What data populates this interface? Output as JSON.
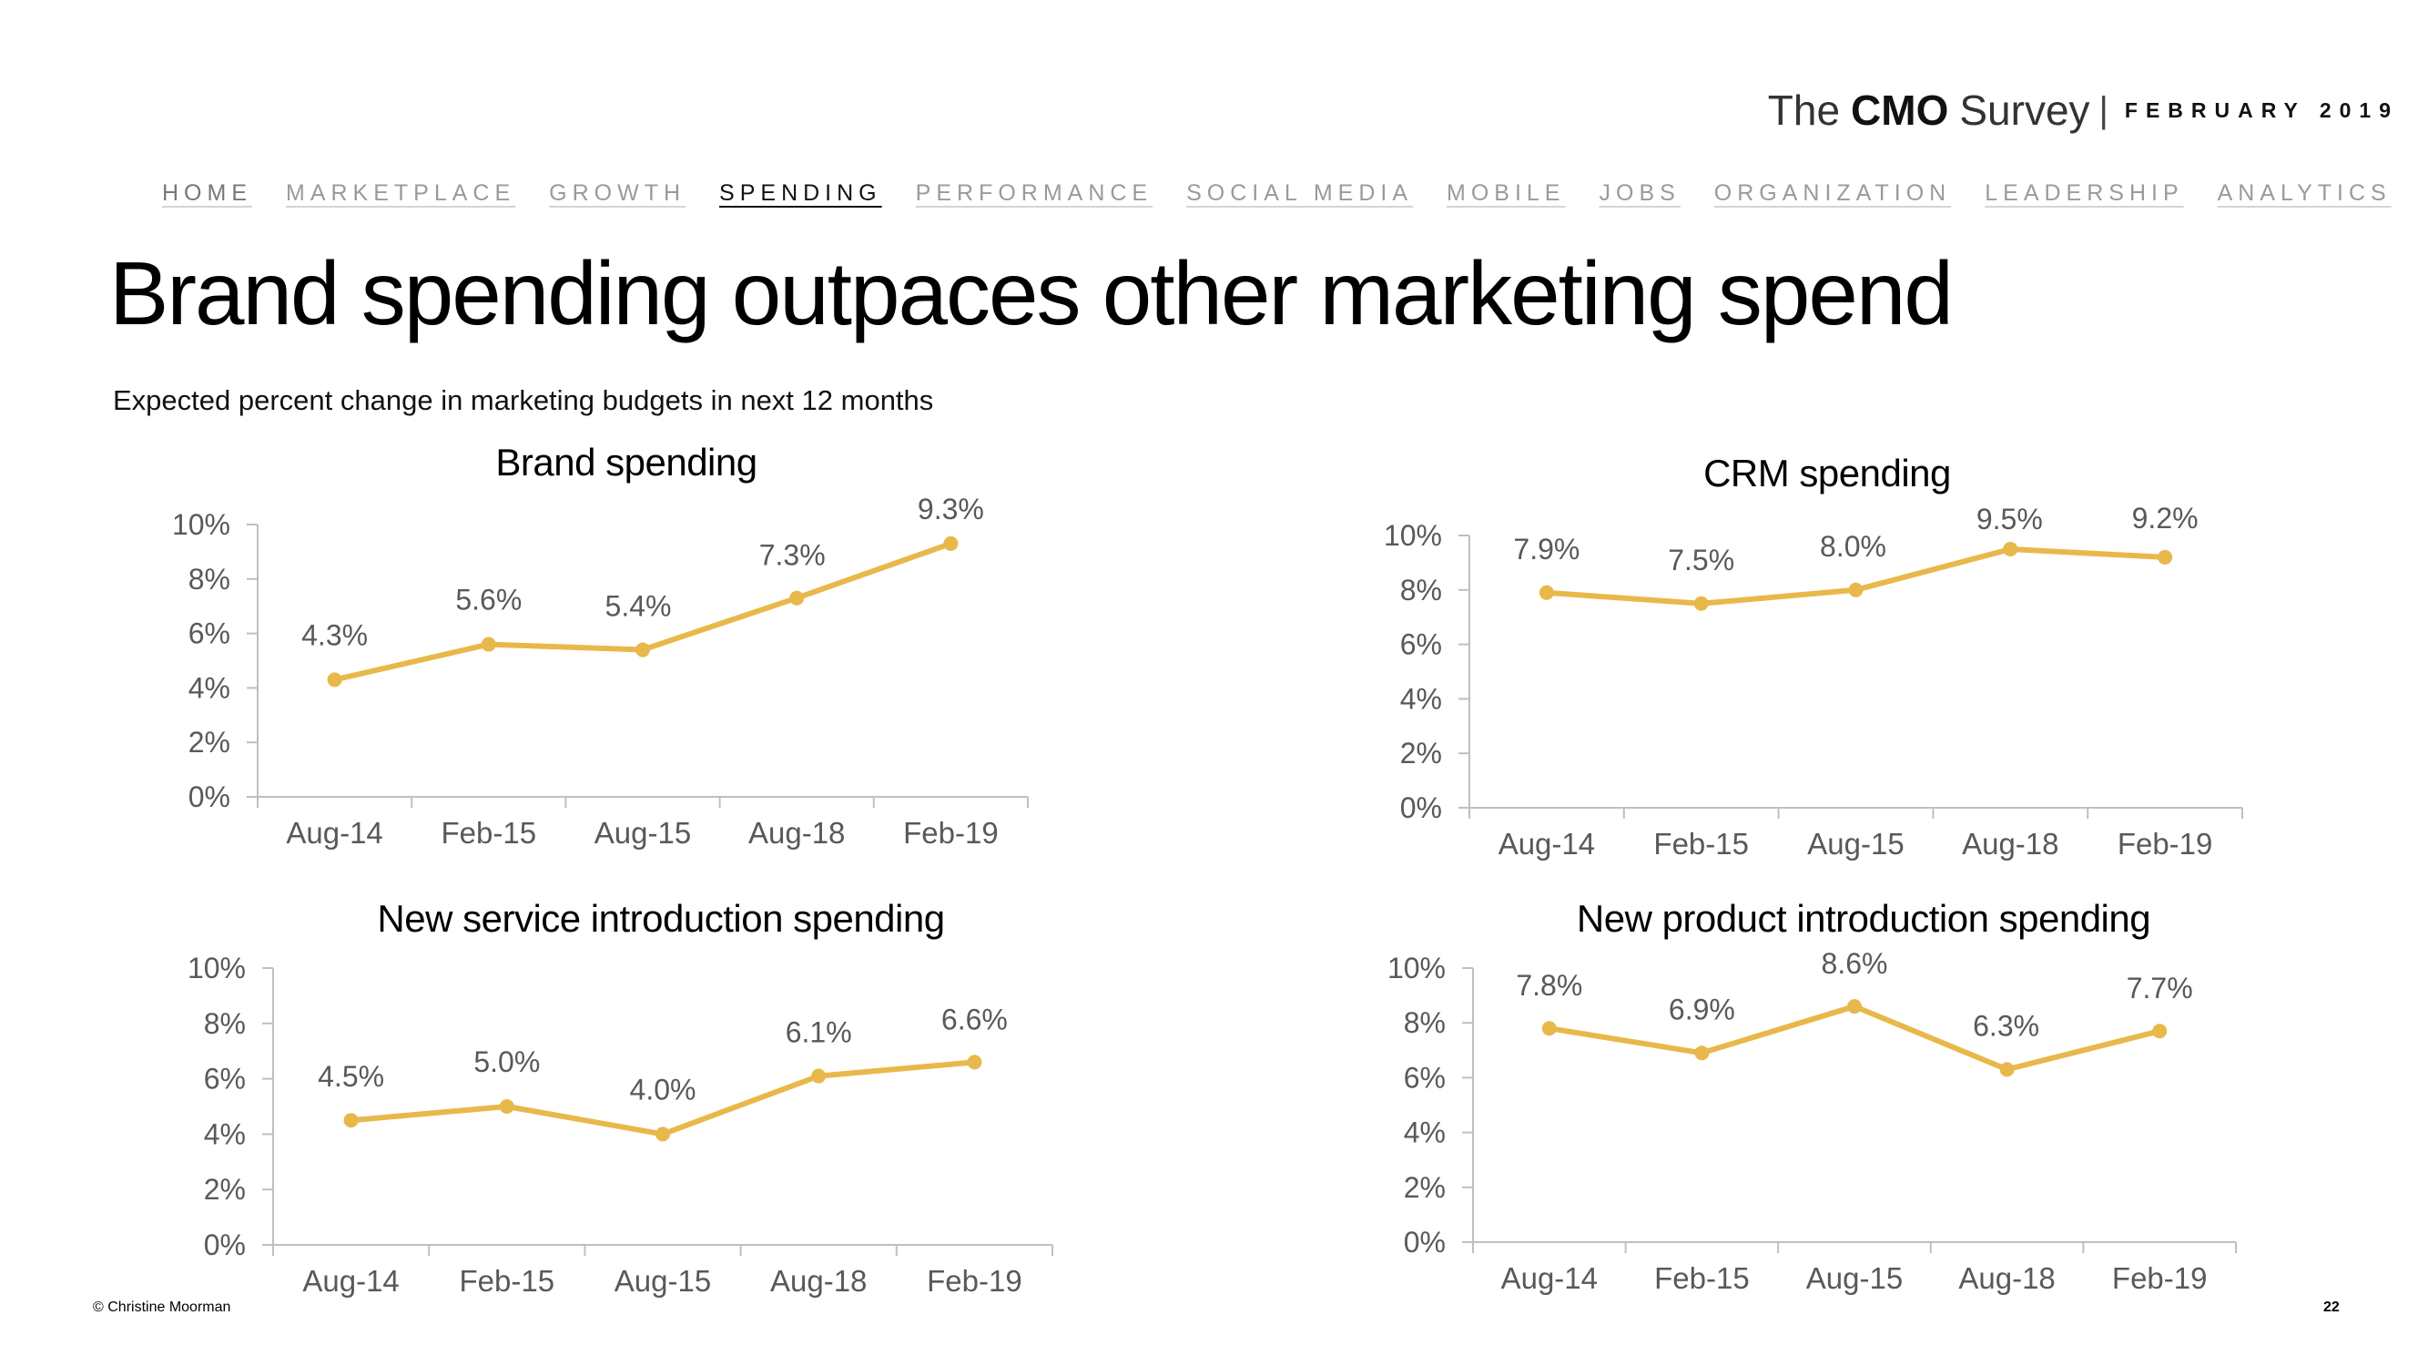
{
  "logo": {
    "the": "The",
    "cmo": "CMO",
    "survey": "Survey",
    "separator": "|",
    "date": "FEBRUARY 2019"
  },
  "nav": {
    "items": [
      "HOME",
      "MARKETPLACE",
      "GROWTH",
      "SPENDING",
      "PERFORMANCE",
      "SOCIAL MEDIA",
      "MOBILE",
      "JOBS",
      "ORGANIZATION",
      "LEADERSHIP",
      "ANALYTICS"
    ],
    "active": "SPENDING"
  },
  "title": "Brand spending outpaces other marketing spend",
  "subtitle": "Expected percent change in marketing budgets in next 12 months",
  "footer": {
    "copyright": "© Christine Moorman",
    "page_number": "22"
  },
  "colors": {
    "line": "#E8B84A",
    "axis": "#BFBFBF",
    "tick_text": "#595959",
    "title_text": "#000000"
  },
  "chart_data": [
    {
      "type": "line",
      "title": "Brand spending",
      "categories": [
        "Aug-14",
        "Feb-15",
        "Aug-15",
        "Aug-18",
        "Feb-19"
      ],
      "values": [
        4.3,
        5.6,
        5.4,
        7.3,
        9.3
      ],
      "data_labels": [
        "4.3%",
        "5.6%",
        "5.4%",
        "7.3%",
        "9.3%"
      ],
      "yticks": [
        "0%",
        "2%",
        "4%",
        "6%",
        "8%",
        "10%"
      ],
      "ylim": [
        0,
        10
      ],
      "xlabel": "",
      "ylabel": ""
    },
    {
      "type": "line",
      "title": "CRM spending",
      "categories": [
        "Aug-14",
        "Feb-15",
        "Aug-15",
        "Aug-18",
        "Feb-19"
      ],
      "values": [
        7.9,
        7.5,
        8.0,
        9.5,
        9.2
      ],
      "data_labels": [
        "7.9%",
        "7.5%",
        "8.0%",
        "9.5%",
        "9.2%"
      ],
      "yticks": [
        "0%",
        "2%",
        "4%",
        "6%",
        "8%",
        "10%"
      ],
      "ylim": [
        0,
        10
      ],
      "xlabel": "",
      "ylabel": ""
    },
    {
      "type": "line",
      "title": "New service introduction spending",
      "categories": [
        "Aug-14",
        "Feb-15",
        "Aug-15",
        "Aug-18",
        "Feb-19"
      ],
      "values": [
        4.5,
        5.0,
        4.0,
        6.1,
        6.6
      ],
      "data_labels": [
        "4.5%",
        "5.0%",
        "4.0%",
        "6.1%",
        "6.6%"
      ],
      "yticks": [
        "0%",
        "2%",
        "4%",
        "6%",
        "8%",
        "10%"
      ],
      "ylim": [
        0,
        10
      ],
      "xlabel": "",
      "ylabel": ""
    },
    {
      "type": "line",
      "title": "New product introduction spending",
      "categories": [
        "Aug-14",
        "Feb-15",
        "Aug-15",
        "Aug-18",
        "Feb-19"
      ],
      "values": [
        7.8,
        6.9,
        8.6,
        6.3,
        7.7
      ],
      "data_labels": [
        "7.8%",
        "6.9%",
        "8.6%",
        "6.3%",
        "7.7%"
      ],
      "yticks": [
        "0%",
        "2%",
        "4%",
        "6%",
        "8%",
        "10%"
      ],
      "ylim": [
        0,
        10
      ],
      "xlabel": "",
      "ylabel": ""
    }
  ]
}
